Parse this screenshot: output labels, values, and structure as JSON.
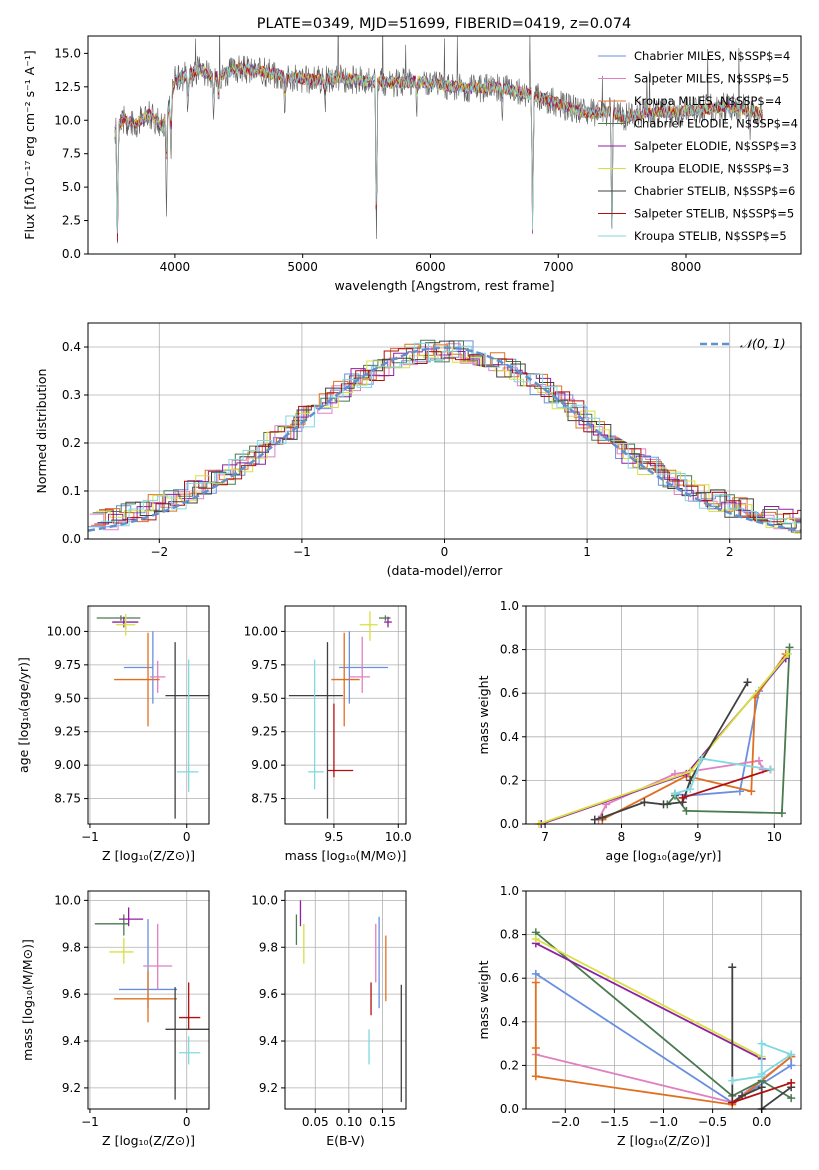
{
  "colors": [
    "#6a8fe0",
    "#e080c0",
    "#e07020",
    "#4a7a50",
    "#9020a0",
    "#d8e040",
    "#404040",
    "#b01010",
    "#80d8e0"
  ],
  "model_labels": [
    "Chabrier MILES, N$SSP$=4",
    "Salpeter MILES, N$SSP$=5",
    "Kroupa MILES, N$SSP$=4",
    "Chabrier ELODIE, N$SSP$=4",
    "Salpeter ELODIE, N$SSP$=3",
    "Kroupa ELODIE, N$SSP$=3",
    "Chabrier STELIB, N$SSP$=6",
    "Salpeter STELIB, N$SSP$=5",
    "Kroupa STELIB, N$SSP$=5"
  ],
  "chart_data": [
    {
      "id": "spectrum",
      "type": "line",
      "title": "PLATE=0349, MJD=51699, FIBERID=0419, z=0.074",
      "xlabel": "wavelength [Angstrom, rest frame]",
      "ylabel": "Flux [fλ10⁻¹⁷ erg cm⁻² s⁻¹ A⁻¹]",
      "xlim": [
        3320,
        8900
      ],
      "ylim": [
        0,
        16.3
      ],
      "xticks": [
        4000,
        5000,
        6000,
        7000,
        8000
      ],
      "xtick_labels": [
        "4000",
        "5000",
        "6000",
        "7000",
        "8000"
      ],
      "yticks": [
        0,
        2.5,
        5,
        7.5,
        10,
        12.5,
        15
      ],
      "ytick_labels": [
        "0.0",
        "2.5",
        "5.0",
        "7.5",
        "10.0",
        "12.5",
        "15.0"
      ],
      "legend": "upper right",
      "continuum": {
        "x": [
          3530,
          3600,
          3700,
          3800,
          3900,
          3950,
          4000,
          4100,
          4200,
          4300,
          4500,
          4700,
          4900,
          5100,
          5300,
          5500,
          5700,
          5900,
          6100,
          6300,
          6500,
          6700,
          6900,
          7000,
          7100,
          7200,
          7300,
          7400,
          7500,
          7700,
          7900,
          8100,
          8300,
          8500,
          8600
        ],
        "y": [
          9.2,
          10.0,
          9.8,
          10.5,
          9.5,
          10.8,
          13.0,
          13.4,
          13.8,
          13.2,
          13.9,
          13.6,
          13.2,
          13.0,
          13.2,
          12.9,
          12.8,
          12.9,
          12.6,
          12.4,
          12.5,
          12.1,
          11.6,
          11.2,
          10.9,
          10.6,
          10.5,
          10.7,
          10.2,
          10.6,
          10.6,
          10.8,
          11.0,
          10.8,
          10.4
        ]
      },
      "absorption_lines": [
        {
          "x": 3550,
          "depth": 9.0
        },
        {
          "x": 3934,
          "depth": 7.5
        },
        {
          "x": 3969,
          "depth": 5.0
        },
        {
          "x": 4102,
          "depth": 3.0
        },
        {
          "x": 4304,
          "depth": 3.5
        },
        {
          "x": 4341,
          "depth": 3.0
        },
        {
          "x": 4861,
          "depth": 2.5
        },
        {
          "x": 5175,
          "depth": 2.0
        },
        {
          "x": 5577,
          "depth": 13.0
        },
        {
          "x": 5893,
          "depth": 2.0
        },
        {
          "x": 6563,
          "depth": 1.5
        },
        {
          "x": 6800,
          "depth": 11.0
        },
        {
          "x": 7420,
          "depth": 10.5
        },
        {
          "x": 8500,
          "depth": 2.0
        }
      ]
    },
    {
      "id": "residuals",
      "type": "bar",
      "xlabel": "(data-model)/error",
      "ylabel": "Normed distribution",
      "xlim": [
        -2.5,
        2.5
      ],
      "ylim": [
        0,
        0.45
      ],
      "xticks": [
        -2,
        -1,
        0,
        1,
        2
      ],
      "xtick_labels": [
        "−2",
        "−1",
        "0",
        "1",
        "2"
      ],
      "yticks": [
        0,
        0.1,
        0.2,
        0.3,
        0.4
      ],
      "ytick_labels": [
        "0.0",
        "0.1",
        "0.2",
        "0.3",
        "0.4"
      ],
      "grid": true,
      "bin_width": 0.1,
      "reference_label": "𝒩(0, 1)",
      "reference_color": "#6090d0",
      "legend": "upper right"
    },
    {
      "id": "z_age",
      "type": "scatter",
      "xlabel": "Z [log₁₀(Z/Z⊙)]",
      "ylabel": "age  [log₁₀(age/yr)]",
      "xlim": [
        -1.02,
        0.23
      ],
      "ylim": [
        8.56,
        10.19
      ],
      "xticks": [
        -1,
        0
      ],
      "xtick_labels": [
        "−1",
        "0"
      ],
      "yticks": [
        8.75,
        9.0,
        9.25,
        9.5,
        9.75,
        10.0
      ],
      "ytick_labels": [
        "8.75",
        "9.00",
        "9.25",
        "9.50",
        "9.75",
        "10.00"
      ],
      "grid": true,
      "points": [
        {
          "x": -0.35,
          "y": 9.73,
          "xerr": [
            0.3,
            0.0
          ],
          "yerr": [
            0.27,
            0.27
          ]
        },
        {
          "x": -0.3,
          "y": 9.66,
          "xerr": [
            0.08,
            0.08
          ],
          "yerr": [
            0.12,
            0.12
          ]
        },
        {
          "x": -0.4,
          "y": 9.64,
          "xerr": [
            0.35,
            0.12
          ],
          "yerr": [
            0.35,
            0.35
          ]
        },
        {
          "x": -0.68,
          "y": 10.1,
          "xerr": [
            0.25,
            0.2
          ],
          "yerr": [
            0.02,
            0.02
          ]
        },
        {
          "x": -0.65,
          "y": 10.07,
          "xerr": [
            0.12,
            0.15
          ],
          "yerr": [
            0.04,
            0.04
          ]
        },
        {
          "x": -0.63,
          "y": 10.05,
          "xerr": [
            0.1,
            0.1
          ],
          "yerr": [
            0.08,
            0.08
          ]
        },
        {
          "x": -0.12,
          "y": 9.52,
          "xerr": [
            0.1,
            0.35
          ],
          "yerr": [
            0.92,
            0.4
          ]
        },
        {
          "x": -0.3,
          "y": 9.66,
          "xerr": [
            0.0,
            0.0
          ],
          "yerr": [
            0.0,
            0.0
          ]
        },
        {
          "x": 0.02,
          "y": 8.95,
          "xerr": [
            0.12,
            0.1
          ],
          "yerr": [
            0.15,
            0.84
          ]
        }
      ]
    },
    {
      "id": "mass_age",
      "type": "scatter",
      "xlabel": "mass [log₁₀(M/M⊙)]",
      "ylabel": "",
      "xlim": [
        9.12,
        10.06
      ],
      "ylim": [
        8.56,
        10.19
      ],
      "xticks": [
        9.5,
        10.0
      ],
      "xtick_labels": [
        "9.5",
        "10.0"
      ],
      "yticks": [
        8.75,
        9.0,
        9.25,
        9.5,
        9.75,
        10.0
      ],
      "ytick_labels": [
        "8.75",
        "9.00",
        "9.25",
        "9.50",
        "9.75",
        "10.00"
      ],
      "grid": true,
      "points": [
        {
          "x": 9.62,
          "y": 9.73,
          "xerr": [
            0.08,
            0.3
          ],
          "yerr": [
            0.27,
            0.27
          ]
        },
        {
          "x": 9.72,
          "y": 9.66,
          "xerr": [
            0.1,
            0.06
          ],
          "yerr": [
            0.12,
            0.3
          ]
        },
        {
          "x": 9.58,
          "y": 9.64,
          "xerr": [
            0.1,
            0.12
          ],
          "yerr": [
            0.35,
            0.35
          ]
        },
        {
          "x": 9.9,
          "y": 10.1,
          "xerr": [
            0.05,
            0.04
          ],
          "yerr": [
            0.02,
            0.02
          ]
        },
        {
          "x": 9.92,
          "y": 10.07,
          "xerr": [
            0.03,
            0.03
          ],
          "yerr": [
            0.04,
            0.04
          ]
        },
        {
          "x": 9.78,
          "y": 10.05,
          "xerr": [
            0.08,
            0.06
          ],
          "yerr": [
            0.12,
            0.1
          ]
        },
        {
          "x": 9.45,
          "y": 9.52,
          "xerr": [
            0.3,
            0.12
          ],
          "yerr": [
            0.92,
            0.4
          ]
        },
        {
          "x": 9.5,
          "y": 8.96,
          "xerr": [
            0.05,
            0.15
          ],
          "yerr": [
            0.05,
            0.5
          ]
        },
        {
          "x": 9.35,
          "y": 8.95,
          "xerr": [
            0.05,
            0.07
          ],
          "yerr": [
            0.13,
            0.84
          ]
        }
      ]
    },
    {
      "id": "age_weight",
      "type": "line",
      "xlabel": "age  [log₁₀(age/yr)]",
      "ylabel": "mass weight",
      "xlim": [
        6.75,
        10.35
      ],
      "ylim": [
        0,
        1.0
      ],
      "xticks": [
        7,
        8,
        9,
        10
      ],
      "xtick_labels": [
        "7",
        "8",
        "9",
        "10"
      ],
      "yticks": [
        0,
        0.2,
        0.4,
        0.6,
        0.8,
        1.0
      ],
      "ytick_labels": [
        "0.0",
        "0.2",
        "0.4",
        "0.6",
        "0.8",
        "1.0"
      ],
      "grid": true,
      "series": [
        {
          "x": [
            10.15,
            9.8,
            9.55,
            8.85,
            8.7
          ],
          "y": [
            0.76,
            0.61,
            0.15,
            0.13,
            0.14
          ]
        },
        {
          "x": [
            9.85,
            9.8,
            8.7,
            7.8,
            7.7
          ],
          "y": [
            0.25,
            0.29,
            0.23,
            0.09,
            0.02
          ]
        },
        {
          "x": [
            10.15,
            9.75,
            9.7,
            8.85,
            7.75
          ],
          "y": [
            0.78,
            0.58,
            0.15,
            0.22,
            0.02
          ]
        },
        {
          "x": [
            10.2,
            10.1,
            8.85,
            8.7,
            8.6
          ],
          "y": [
            0.81,
            0.05,
            0.06,
            0.13,
            0.09
          ]
        },
        {
          "x": [
            10.15,
            8.85,
            6.95
          ],
          "y": [
            0.76,
            0.23,
            0.0
          ]
        },
        {
          "x": [
            10.18,
            8.9,
            6.92
          ],
          "y": [
            0.78,
            0.24,
            0.0
          ]
        },
        {
          "x": [
            9.65,
            8.9,
            8.8,
            8.55,
            8.3,
            7.75,
            7.65
          ],
          "y": [
            0.65,
            0.2,
            0.1,
            0.09,
            0.1,
            0.03,
            0.02
          ]
        },
        {
          "x": [
            9.95,
            8.8
          ],
          "y": [
            0.25,
            0.12
          ]
        },
        {
          "x": [
            9.95,
            9.05,
            8.9,
            8.7
          ],
          "y": [
            0.25,
            0.3,
            0.16,
            0.14
          ]
        }
      ]
    },
    {
      "id": "z_mass",
      "type": "scatter",
      "xlabel": "Z [log₁₀(Z/Z⊙)]",
      "ylabel": "mass [log₁₀(M/M⊙)]",
      "xlim": [
        -1.02,
        0.23
      ],
      "ylim": [
        9.11,
        10.04
      ],
      "xticks": [
        -1,
        0
      ],
      "xtick_labels": [
        "−1",
        "0"
      ],
      "yticks": [
        9.2,
        9.4,
        9.6,
        9.8,
        10.0
      ],
      "ytick_labels": [
        "9.2",
        "9.4",
        "9.6",
        "9.8",
        "10.0"
      ],
      "grid": true,
      "points": [
        {
          "x": -0.4,
          "y": 9.62,
          "xerr": [
            0.3,
            0.3
          ],
          "yerr": [
            0.08,
            0.3
          ]
        },
        {
          "x": -0.3,
          "y": 9.72,
          "xerr": [
            0.15,
            0.15
          ],
          "yerr": [
            0.1,
            0.18
          ]
        },
        {
          "x": -0.4,
          "y": 9.58,
          "xerr": [
            0.35,
            0.3
          ],
          "yerr": [
            0.1,
            0.12
          ]
        },
        {
          "x": -0.65,
          "y": 9.9,
          "xerr": [
            0.3,
            0.05
          ],
          "yerr": [
            0.05,
            0.04
          ]
        },
        {
          "x": -0.6,
          "y": 9.92,
          "xerr": [
            0.1,
            0.15
          ],
          "yerr": [
            0.03,
            0.05
          ]
        },
        {
          "x": -0.65,
          "y": 9.78,
          "xerr": [
            0.15,
            0.1
          ],
          "yerr": [
            0.05,
            0.06
          ]
        },
        {
          "x": -0.12,
          "y": 9.45,
          "xerr": [
            0.1,
            0.35
          ],
          "yerr": [
            0.3,
            0.18
          ]
        },
        {
          "x": 0.02,
          "y": 9.5,
          "xerr": [
            0.1,
            0.12
          ],
          "yerr": [
            0.05,
            0.15
          ]
        },
        {
          "x": 0.02,
          "y": 9.35,
          "xerr": [
            0.1,
            0.12
          ],
          "yerr": [
            0.05,
            0.07
          ]
        }
      ]
    },
    {
      "id": "ebv_mass",
      "type": "scatter",
      "xlabel": "E(B-V)",
      "ylabel": "",
      "xlim": [
        0.005,
        0.185
      ],
      "ylim": [
        9.11,
        10.04
      ],
      "xticks": [
        0.05,
        0.1,
        0.15
      ],
      "xtick_labels": [
        "0.05",
        "0.10",
        "0.15"
      ],
      "yticks": [
        9.2,
        9.4,
        9.6,
        9.8,
        10.0
      ],
      "ytick_labels": [
        "9.2",
        "9.4",
        "9.6",
        "9.8",
        "10.0"
      ],
      "grid": true,
      "points": [
        {
          "x": 0.145,
          "y": 9.7,
          "xerr": [
            0,
            0
          ],
          "yerr": [
            0.16,
            0.23
          ]
        },
        {
          "x": 0.14,
          "y": 9.8,
          "xerr": [
            0,
            0
          ],
          "yerr": [
            0.15,
            0.1
          ]
        },
        {
          "x": 0.155,
          "y": 9.72,
          "xerr": [
            0,
            0
          ],
          "yerr": [
            0.15,
            0.13
          ]
        },
        {
          "x": 0.022,
          "y": 9.87,
          "xerr": [
            0,
            0
          ],
          "yerr": [
            0.06,
            0.07
          ]
        },
        {
          "x": 0.028,
          "y": 9.93,
          "xerr": [
            0,
            0
          ],
          "yerr": [
            0.04,
            0.07
          ]
        },
        {
          "x": 0.033,
          "y": 9.8,
          "xerr": [
            0,
            0
          ],
          "yerr": [
            0.07,
            0.1
          ]
        },
        {
          "x": 0.178,
          "y": 9.38,
          "xerr": [
            0,
            0
          ],
          "yerr": [
            0.24,
            0.26
          ]
        },
        {
          "x": 0.133,
          "y": 9.55,
          "xerr": [
            0,
            0
          ],
          "yerr": [
            0.04,
            0.1
          ]
        },
        {
          "x": 0.13,
          "y": 9.4,
          "xerr": [
            0,
            0
          ],
          "yerr": [
            0.1,
            0.05
          ]
        }
      ]
    },
    {
      "id": "z_weight",
      "type": "line",
      "xlabel": "Z [log₁₀(Z/Z⊙)]",
      "ylabel": "mass weight",
      "xlim": [
        -2.4,
        0.4
      ],
      "ylim": [
        0,
        1.0
      ],
      "xticks": [
        -2.0,
        -1.5,
        -1.0,
        -0.5,
        0.0
      ],
      "xtick_labels": [
        "−2.0",
        "−1.5",
        "−1.0",
        "−0.5",
        "0.0"
      ],
      "yticks": [
        0,
        0.2,
        0.4,
        0.6,
        0.8,
        1.0
      ],
      "ytick_labels": [
        "0.0",
        "0.2",
        "0.4",
        "0.6",
        "0.8",
        "1.0"
      ],
      "grid": true,
      "series": [
        {
          "x": [
            -2.3,
            -0.3,
            0.3,
            0.3
          ],
          "y": [
            0.62,
            0.03,
            0.2,
            0.24
          ]
        },
        {
          "x": [
            -2.3,
            -0.3,
            0.3
          ],
          "y": [
            0.25,
            0.03,
            0.24
          ]
        },
        {
          "x": [
            -2.3,
            -2.3,
            -2.3,
            -0.3,
            0.3
          ],
          "y": [
            0.58,
            0.28,
            0.15,
            0.02,
            0.24
          ]
        },
        {
          "x": [
            -2.3,
            -0.3,
            0.0,
            0.3
          ],
          "y": [
            0.81,
            0.06,
            0.13,
            0.05
          ]
        },
        {
          "x": [
            -2.3,
            0.0
          ],
          "y": [
            0.76,
            0.23
          ]
        },
        {
          "x": [
            -2.3,
            0.0
          ],
          "y": [
            0.78,
            0.24
          ]
        },
        {
          "x": [
            -0.3,
            -0.3,
            -0.2,
            0.0,
            0.0,
            0.3
          ],
          "y": [
            0.65,
            0.03,
            0.06,
            0.1,
            0.0,
            0.1
          ]
        },
        {
          "x": [
            -0.3,
            0.3
          ],
          "y": [
            0.03,
            0.12
          ]
        },
        {
          "x": [
            -0.3,
            0.0,
            0.0,
            0.3,
            0.0
          ],
          "y": [
            0.13,
            0.15,
            0.3,
            0.25,
            0.16
          ]
        }
      ]
    }
  ]
}
